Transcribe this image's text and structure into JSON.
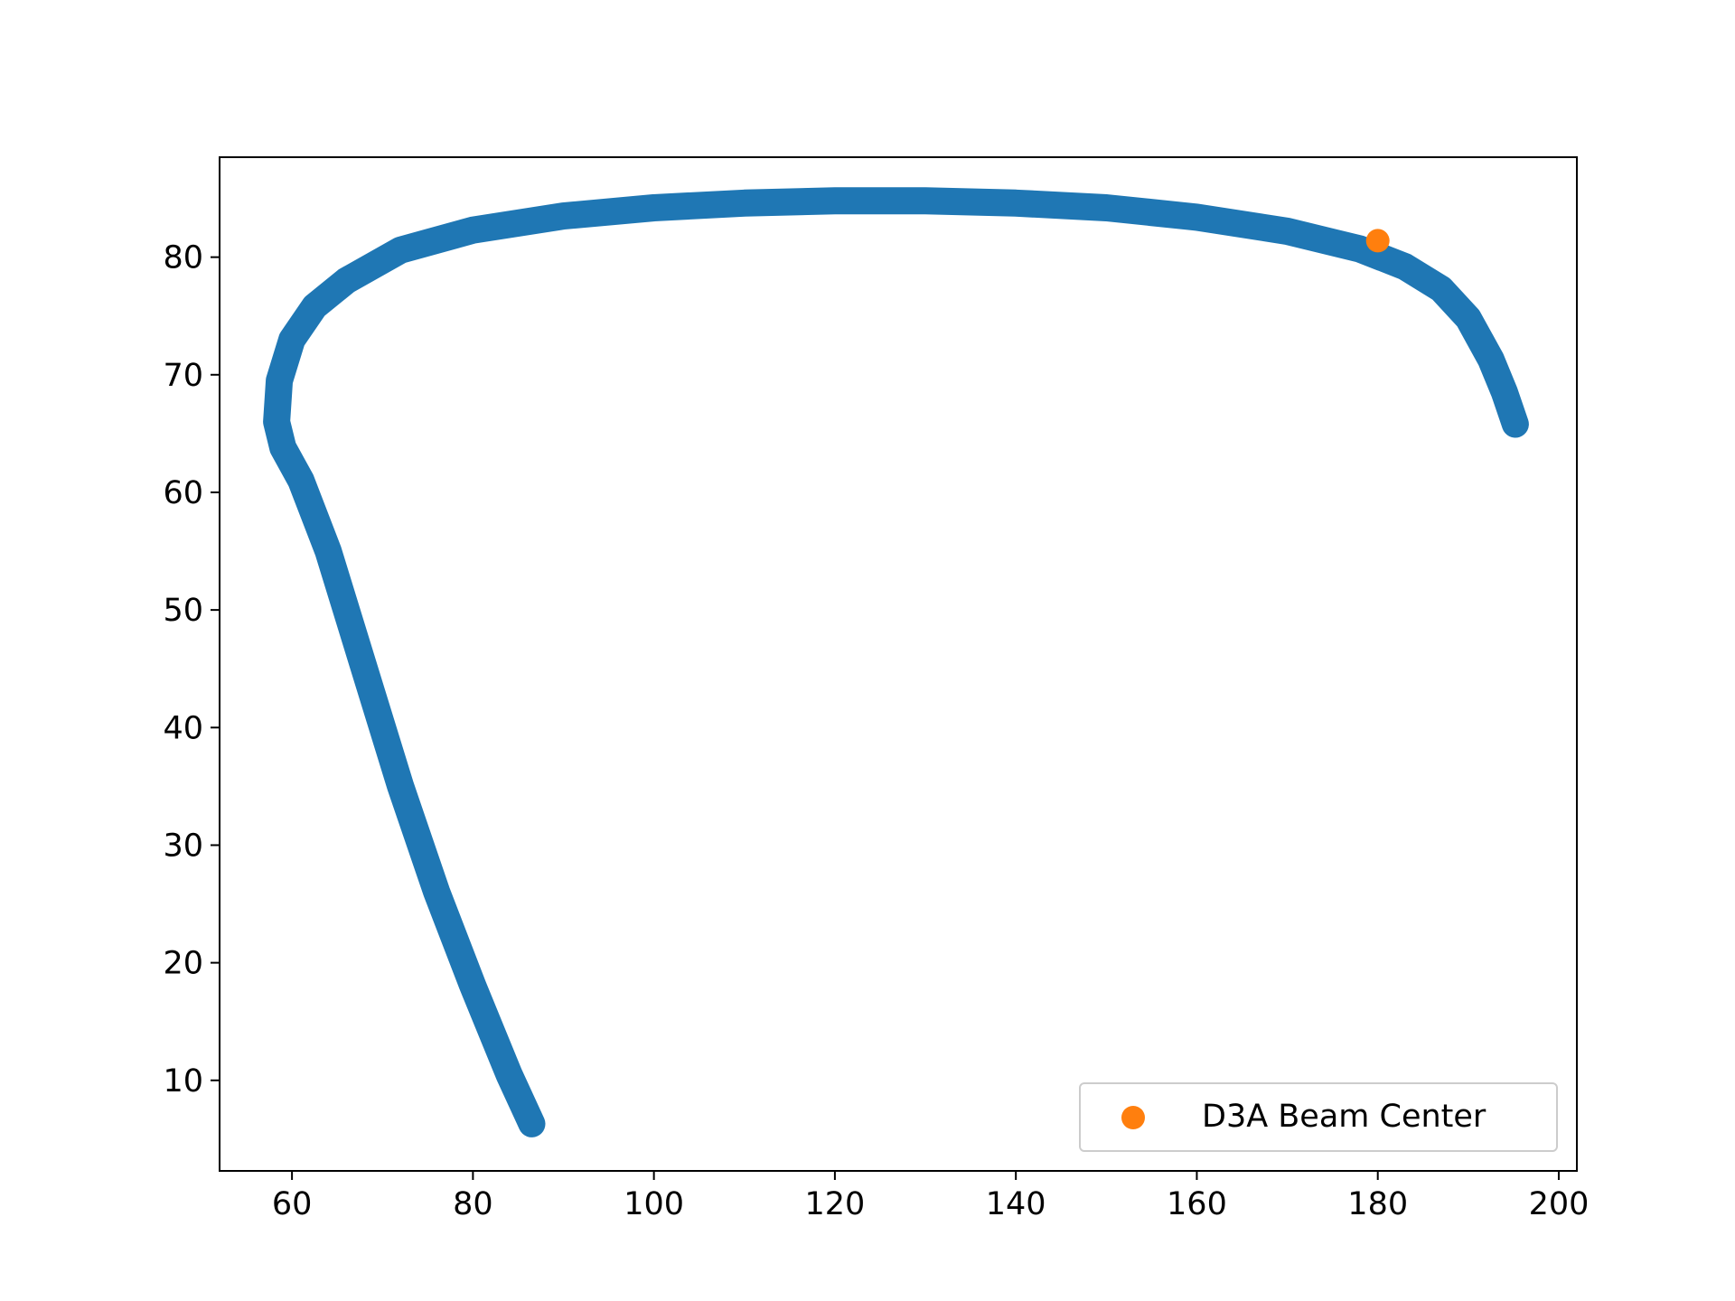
{
  "chart_data": {
    "type": "scatter",
    "title": "",
    "xlabel": "",
    "ylabel": "",
    "xlim": [
      52,
      202
    ],
    "ylim": [
      2.3,
      88.5
    ],
    "grid": false,
    "legend": {
      "placement": "lower-right",
      "entries": [
        "D3A Beam Center"
      ]
    },
    "x_ticks": [
      60,
      80,
      100,
      120,
      140,
      160,
      180,
      200
    ],
    "y_ticks": [
      10,
      20,
      30,
      40,
      50,
      60,
      70,
      80
    ],
    "series": [
      {
        "color": "#1f77b4",
        "marker": "thick-curve",
        "x": [
          86.5,
          84,
          80,
          76,
          72,
          68,
          64,
          61,
          59,
          58.3,
          58.6,
          60,
          62.5,
          66,
          72,
          80,
          90,
          100,
          110,
          120,
          130,
          140,
          150,
          160,
          170,
          178,
          183,
          187,
          190,
          192.5,
          194,
          195.2
        ],
        "y": [
          6.3,
          10.5,
          18,
          26,
          35,
          45,
          55,
          61,
          63.8,
          66,
          69.5,
          73,
          75.8,
          78,
          80.6,
          82.3,
          83.5,
          84.2,
          84.6,
          84.8,
          84.8,
          84.6,
          84.2,
          83.4,
          82.2,
          80.7,
          79.2,
          77.3,
          74.8,
          71.3,
          68.5,
          65.8
        ]
      },
      {
        "name": "D3A Beam Center",
        "color": "#ff7f0e",
        "marker": "circle",
        "x": [
          180
        ],
        "y": [
          81.4
        ]
      }
    ]
  }
}
